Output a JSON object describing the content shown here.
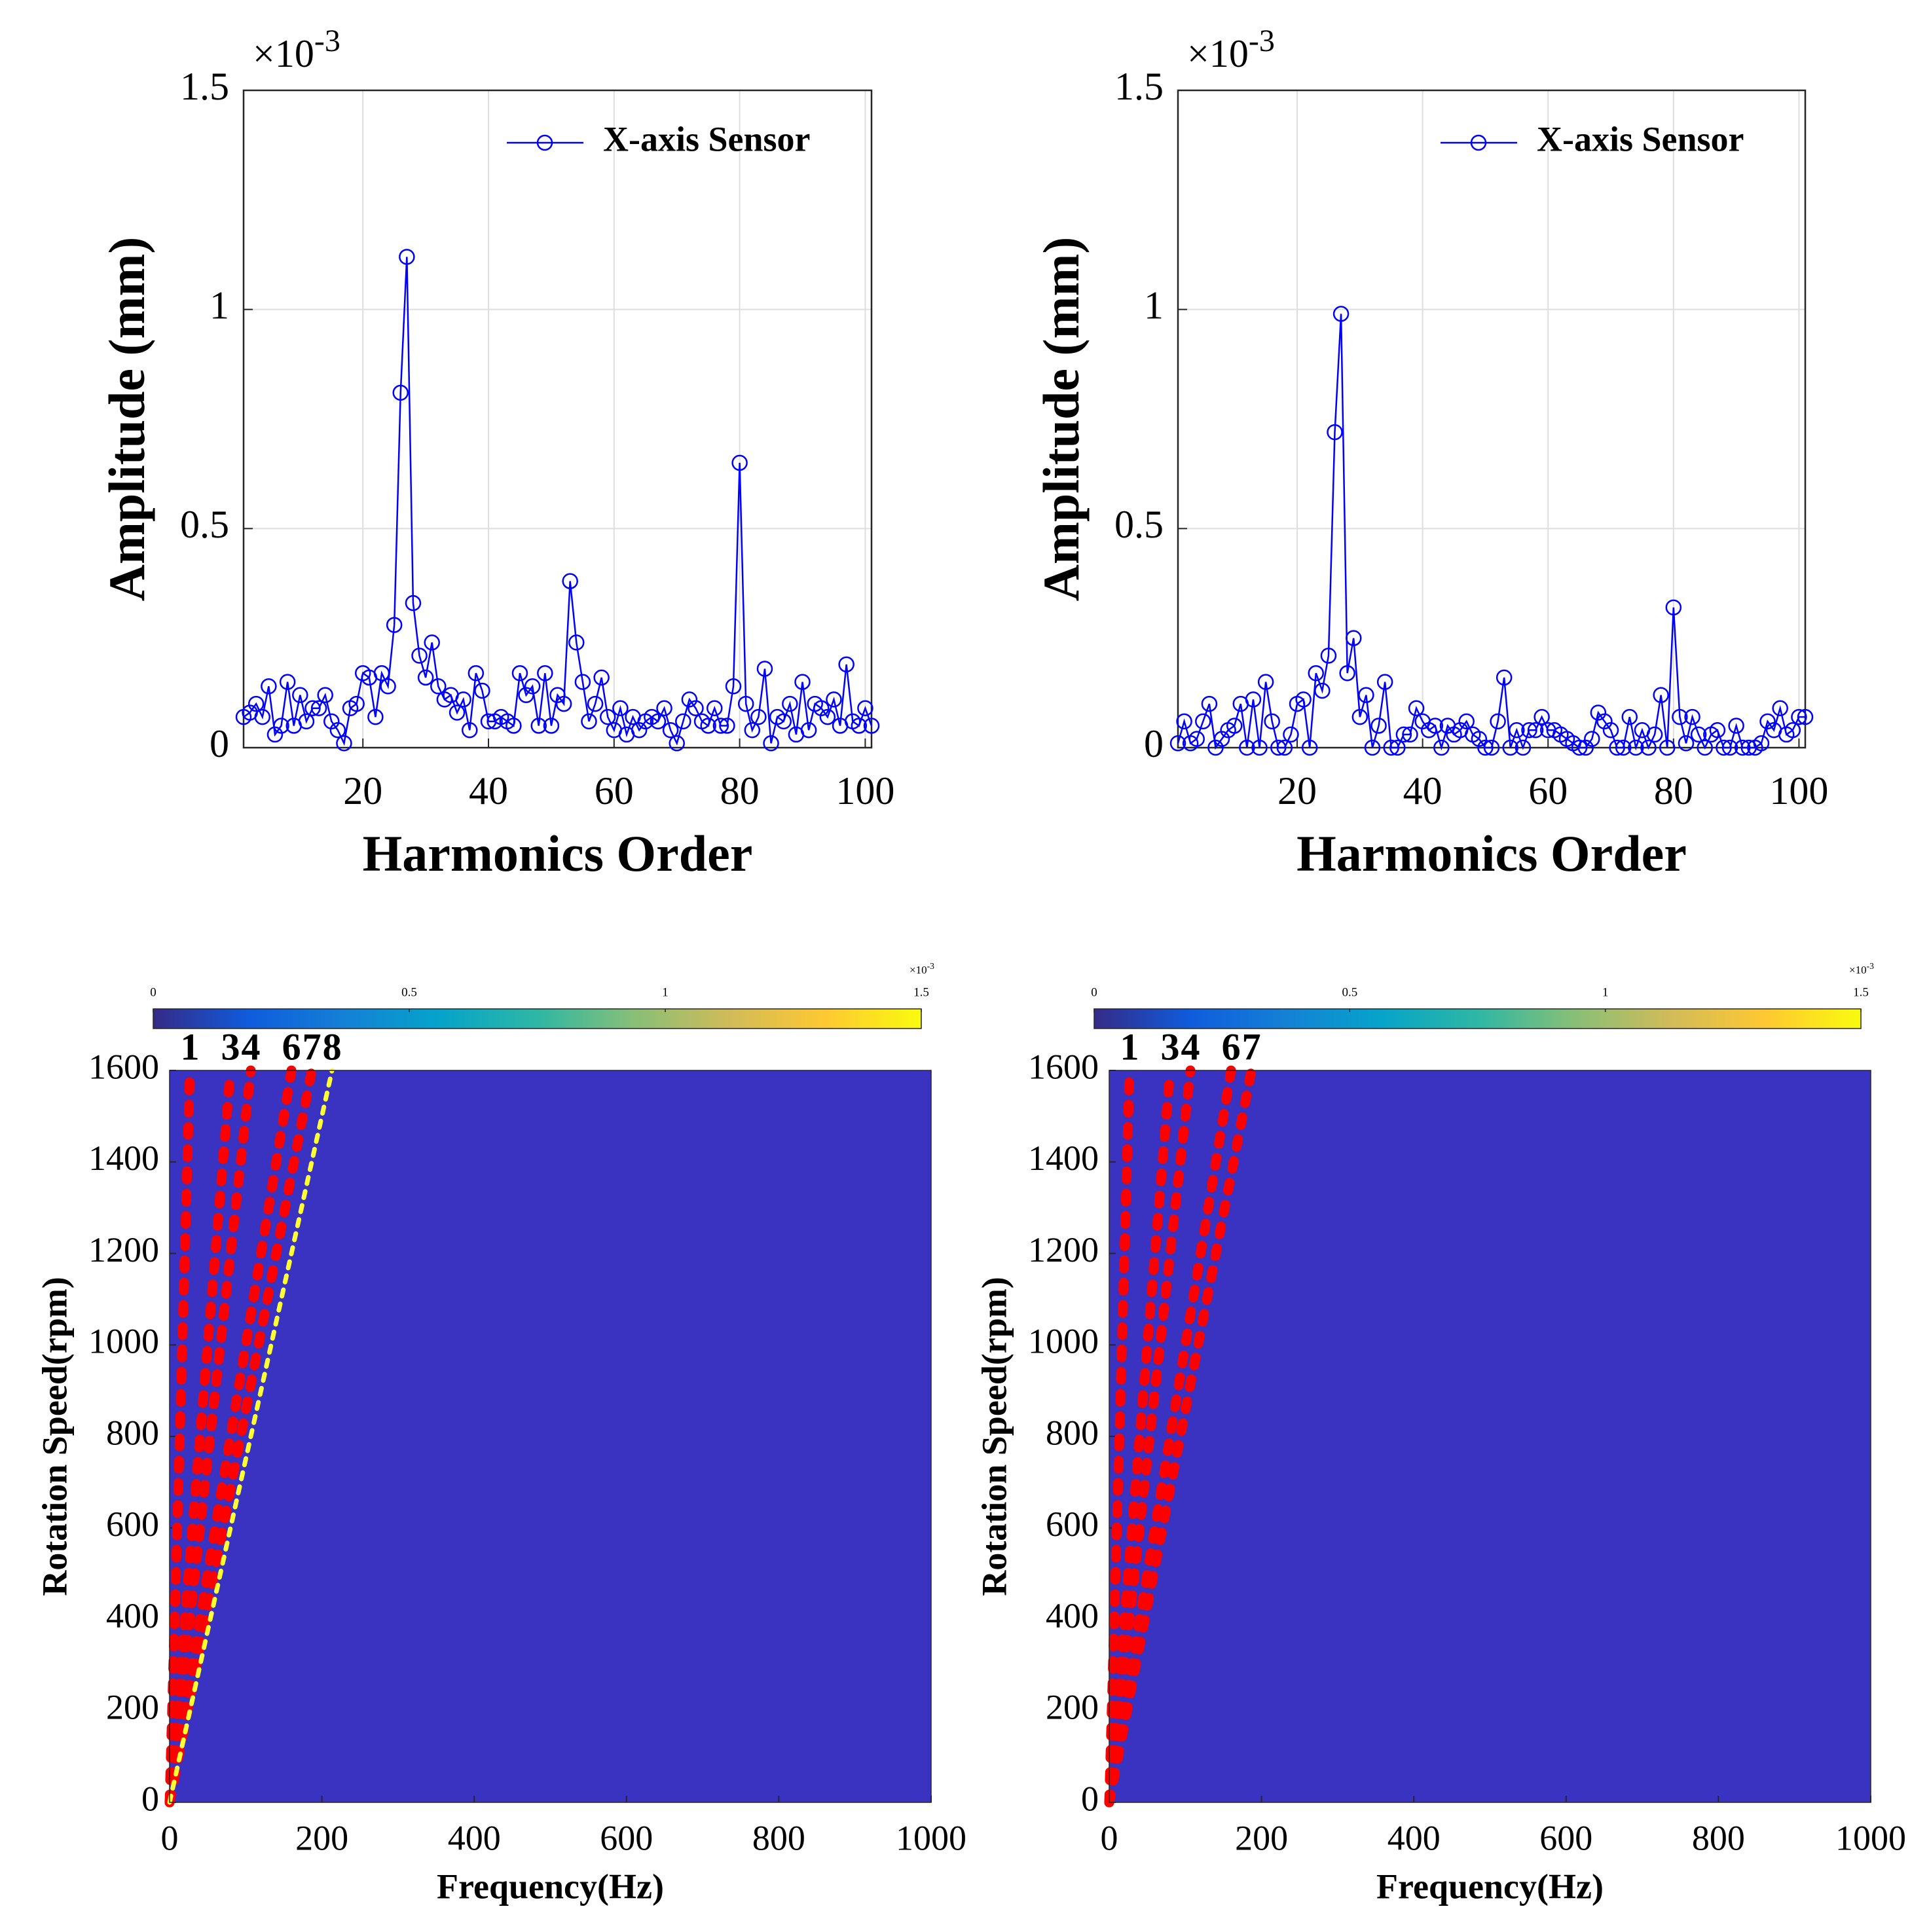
{
  "chart_data": [
    {
      "type": "line",
      "xlabel": "Harmonics Order",
      "ylabel": "Amplitude (mm)",
      "y_multiplier": {
        "base": "×10",
        "exponent": "-3"
      },
      "x": [
        1,
        2,
        3,
        4,
        5,
        6,
        7,
        8,
        9,
        10,
        11,
        12,
        13,
        14,
        15,
        16,
        17,
        18,
        19,
        20,
        21,
        22,
        23,
        24,
        25,
        26,
        27,
        28,
        29,
        30,
        31,
        32,
        33,
        34,
        35,
        36,
        37,
        38,
        39,
        40,
        41,
        42,
        43,
        44,
        45,
        46,
        47,
        48,
        49,
        50,
        51,
        52,
        53,
        54,
        55,
        56,
        57,
        58,
        59,
        60,
        61,
        62,
        63,
        64,
        65,
        66,
        67,
        68,
        69,
        70,
        71,
        72,
        73,
        74,
        75,
        76,
        77,
        78,
        79,
        80,
        81,
        82,
        83,
        84,
        85,
        86,
        87,
        88,
        89,
        90,
        91,
        92,
        93,
        94,
        95,
        96,
        97,
        98,
        99,
        100,
        101
      ],
      "series": [
        {
          "name": "X-axis Sensor",
          "color": "#0000ff",
          "values": [
            0.07,
            0.08,
            0.1,
            0.07,
            0.14,
            0.03,
            0.05,
            0.15,
            0.05,
            0.12,
            0.06,
            0.09,
            0.09,
            0.12,
            0.06,
            0.04,
            0.01,
            0.09,
            0.1,
            0.17,
            0.16,
            0.07,
            0.17,
            0.14,
            0.28,
            0.81,
            1.12,
            0.33,
            0.21,
            0.16,
            0.24,
            0.14,
            0.11,
            0.12,
            0.08,
            0.11,
            0.04,
            0.17,
            0.13,
            0.06,
            0.06,
            0.07,
            0.06,
            0.05,
            0.17,
            0.12,
            0.14,
            0.05,
            0.17,
            0.05,
            0.12,
            0.1,
            0.38,
            0.24,
            0.15,
            0.06,
            0.1,
            0.16,
            0.07,
            0.04,
            0.09,
            0.03,
            0.07,
            0.04,
            0.06,
            0.07,
            0.06,
            0.09,
            0.04,
            0.01,
            0.06,
            0.11,
            0.09,
            0.06,
            0.05,
            0.09,
            0.05,
            0.05,
            0.14,
            0.65,
            0.1,
            0.04,
            0.07,
            0.18,
            0.01,
            0.07,
            0.06,
            0.1,
            0.03,
            0.15,
            0.04,
            0.1,
            0.09,
            0.07,
            0.11,
            0.05,
            0.19,
            0.06,
            0.05,
            0.09,
            0.05
          ]
        }
      ],
      "xlim": [
        1,
        101
      ],
      "xticks": [
        20,
        40,
        60,
        80,
        100
      ],
      "ylim": [
        0,
        1.5
      ],
      "yticks": [
        0,
        0.5,
        1,
        1.5
      ],
      "grid": true,
      "legend": "upper right"
    },
    {
      "type": "line",
      "xlabel": "Harmonics Order",
      "ylabel": "Amplitude (mm)",
      "y_multiplier": {
        "base": "×10",
        "exponent": "-3"
      },
      "x": [
        1,
        2,
        3,
        4,
        5,
        6,
        7,
        8,
        9,
        10,
        11,
        12,
        13,
        14,
        15,
        16,
        17,
        18,
        19,
        20,
        21,
        22,
        23,
        24,
        25,
        26,
        27,
        28,
        29,
        30,
        31,
        32,
        33,
        34,
        35,
        36,
        37,
        38,
        39,
        40,
        41,
        42,
        43,
        44,
        45,
        46,
        47,
        48,
        49,
        50,
        51,
        52,
        53,
        54,
        55,
        56,
        57,
        58,
        59,
        60,
        61,
        62,
        63,
        64,
        65,
        66,
        67,
        68,
        69,
        70,
        71,
        72,
        73,
        74,
        75,
        76,
        77,
        78,
        79,
        80,
        81,
        82,
        83,
        84,
        85,
        86,
        87,
        88,
        89,
        90,
        91,
        92,
        93,
        94,
        95,
        96,
        97,
        98,
        99,
        100,
        101
      ],
      "series": [
        {
          "name": "X-axis Sensor",
          "color": "#0000ff",
          "values": [
            0.01,
            0.06,
            0.01,
            0.02,
            0.06,
            0.1,
            0,
            0.02,
            0.04,
            0.05,
            0.1,
            0,
            0.11,
            0,
            0.15,
            0.06,
            0,
            0,
            0.03,
            0.1,
            0.11,
            0,
            0.17,
            0.13,
            0.21,
            0.72,
            0.99,
            0.17,
            0.25,
            0.07,
            0.12,
            0,
            0.05,
            0.15,
            0,
            0,
            0.03,
            0.03,
            0.09,
            0.06,
            0.04,
            0.05,
            0,
            0.05,
            0.03,
            0.04,
            0.06,
            0.03,
            0.02,
            0,
            0,
            0.06,
            0.16,
            0,
            0.04,
            0,
            0.04,
            0.04,
            0.07,
            0.04,
            0.04,
            0.03,
            0.02,
            0.01,
            0,
            0,
            0.02,
            0.08,
            0.06,
            0.04,
            0,
            0,
            0.07,
            0,
            0.04,
            0,
            0.03,
            0.12,
            0,
            0.32,
            0.07,
            0.01,
            0.07,
            0.03,
            0,
            0.03,
            0.04,
            0,
            0,
            0.05,
            0,
            0,
            0,
            0.01,
            0.06,
            0.04,
            0.09,
            0.03,
            0.04,
            0.07,
            0.07
          ]
        }
      ],
      "xlim": [
        1,
        101
      ],
      "xticks": [
        20,
        40,
        60,
        80,
        100
      ],
      "ylim": [
        0,
        1.5
      ],
      "yticks": [
        0,
        0.5,
        1,
        1.5
      ],
      "grid": true,
      "legend": "upper right"
    },
    {
      "type": "spectrogram",
      "xlabel": "Frequency(Hz)",
      "ylabel": "Rotation Speed(rpm)",
      "xlim": [
        0,
        1000
      ],
      "xticks": [
        0,
        200,
        400,
        600,
        800,
        1000
      ],
      "ylim": [
        0,
        1600
      ],
      "yticks": [
        0,
        200,
        400,
        600,
        800,
        1000,
        1200,
        1400,
        1600
      ],
      "background_color": "#3a33c2",
      "colormap": "parula",
      "colorbar": {
        "lim": [
          0,
          1.5
        ],
        "ticks": [
          0,
          0.5,
          1,
          1.5
        ],
        "multiplier": {
          "base": "×10",
          "exponent": "-3"
        }
      },
      "orders": [
        1,
        3,
        4,
        6,
        7,
        8
      ],
      "order_colors": [
        "#ff0000",
        "#ff0000",
        "#ff0000",
        "#ff0000",
        "#ff0000",
        "#ffff33"
      ]
    },
    {
      "type": "spectrogram",
      "xlabel": "Frequency(Hz)",
      "ylabel": "Rotation Speed(rpm)",
      "xlim": [
        0,
        1000
      ],
      "xticks": [
        0,
        200,
        400,
        600,
        800,
        1000
      ],
      "ylim": [
        0,
        1600
      ],
      "yticks": [
        0,
        200,
        400,
        600,
        800,
        1000,
        1200,
        1400,
        1600
      ],
      "background_color": "#3a33c2",
      "colormap": "parula",
      "colorbar": {
        "lim": [
          0,
          1.5
        ],
        "ticks": [
          0,
          0.5,
          1,
          1.5
        ],
        "multiplier": {
          "base": "×10",
          "exponent": "-3"
        }
      },
      "orders": [
        1,
        3,
        4,
        6,
        7
      ],
      "order_colors": [
        "#ff0000",
        "#ff0000",
        "#ff0000",
        "#ff0000",
        "#ff0000"
      ]
    }
  ]
}
